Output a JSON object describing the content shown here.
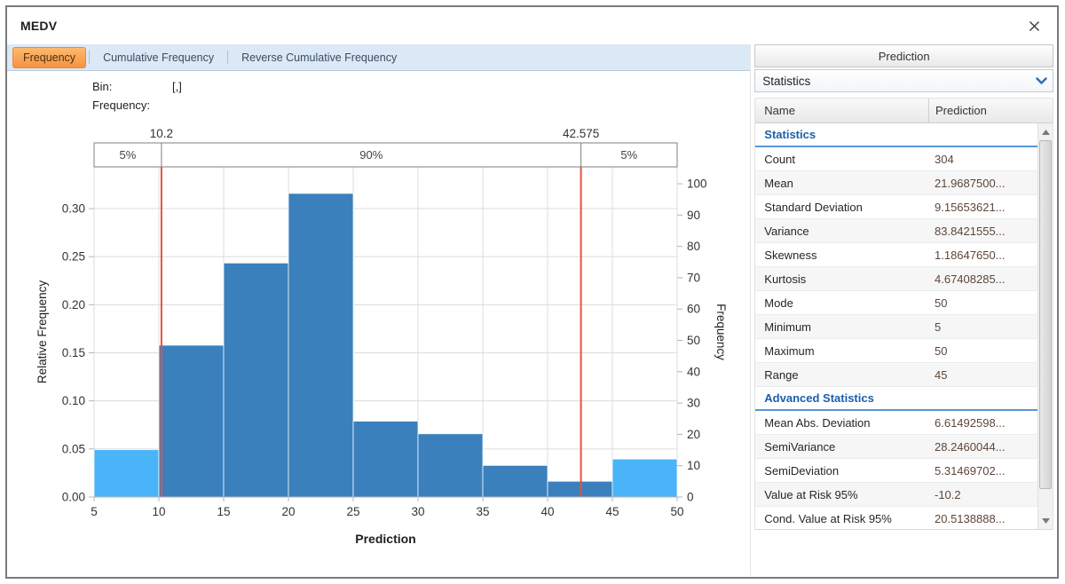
{
  "window": {
    "title": "MEDV",
    "close": "close"
  },
  "tabs": [
    {
      "label": "Frequency",
      "active": true
    },
    {
      "label": "Cumulative Frequency",
      "active": false
    },
    {
      "label": "Reverse Cumulative Frequency",
      "active": false
    }
  ],
  "readout": {
    "bin_label": "Bin:",
    "bin_value": "[,]",
    "frequency_label": "Frequency:",
    "frequency_value": ""
  },
  "chart_data": {
    "type": "bar",
    "title": "",
    "xlabel": "Prediction",
    "ylabel_left": "Relative Frequency",
    "ylabel_right": "Frequency",
    "x_range": [
      5,
      50
    ],
    "x_ticks": [
      5,
      10,
      15,
      20,
      25,
      30,
      35,
      40,
      45,
      50
    ],
    "y_left_ticks": [
      0,
      0.05,
      0.1,
      0.15,
      0.2,
      0.25,
      0.3
    ],
    "y_left_max": 0.3434,
    "y_right_ticks": [
      0,
      10,
      20,
      30,
      40,
      50,
      60,
      70,
      80,
      90,
      100
    ],
    "y_right_max": 105.4,
    "total_count": 304,
    "grid": true,
    "legend": null,
    "bins": [
      {
        "x0": 5,
        "x1": 10,
        "frequency": 15,
        "relative_frequency": 0.0493,
        "tail": true
      },
      {
        "x0": 10,
        "x1": 15,
        "frequency": 48,
        "relative_frequency": 0.1579,
        "tail": false
      },
      {
        "x0": 15,
        "x1": 20,
        "frequency": 74,
        "relative_frequency": 0.2434,
        "tail": false
      },
      {
        "x0": 20,
        "x1": 25,
        "frequency": 96,
        "relative_frequency": 0.3158,
        "tail": false
      },
      {
        "x0": 25,
        "x1": 30,
        "frequency": 24,
        "relative_frequency": 0.0789,
        "tail": false
      },
      {
        "x0": 30,
        "x1": 35,
        "frequency": 20,
        "relative_frequency": 0.0658,
        "tail": false
      },
      {
        "x0": 35,
        "x1": 40,
        "frequency": 10,
        "relative_frequency": 0.0329,
        "tail": false
      },
      {
        "x0": 40,
        "x1": 45,
        "frequency": 5,
        "relative_frequency": 0.0164,
        "tail": false
      },
      {
        "x0": 45,
        "x1": 50,
        "frequency": 12,
        "relative_frequency": 0.0395,
        "tail": true
      }
    ],
    "percentile_band": {
      "segments": [
        {
          "label": "5%",
          "from": 5,
          "to": 10.2
        },
        {
          "label": "90%",
          "from": 10.2,
          "to": 42.575
        },
        {
          "label": "5%",
          "from": 42.575,
          "to": 50
        }
      ],
      "markers": [
        {
          "value": 10.2,
          "label": "10.2"
        },
        {
          "value": 42.575,
          "label": "42.575"
        }
      ]
    },
    "colors": {
      "bar": "#3a80bd",
      "bar_tail": "#4ab4f8",
      "marker_line": "#e8503f",
      "grid": "#dcdcdc",
      "axis": "#b5b5b5",
      "band_border": "#7f7f7f",
      "tick_text": "#333333"
    }
  },
  "right_panel": {
    "header": "Prediction",
    "dropdown": {
      "value": "Statistics"
    },
    "table": {
      "columns": [
        "Name",
        "Prediction"
      ],
      "sections": [
        {
          "title": "Statistics",
          "rows": [
            [
              "Count",
              "304"
            ],
            [
              "Mean",
              "21.9687500..."
            ],
            [
              "Standard Deviation",
              "9.15653621..."
            ],
            [
              "Variance",
              "83.8421555..."
            ],
            [
              "Skewness",
              "1.18647650..."
            ],
            [
              "Kurtosis",
              "4.67408285..."
            ],
            [
              "Mode",
              "50"
            ],
            [
              "Minimum",
              "5"
            ],
            [
              "Maximum",
              "50"
            ],
            [
              "Range",
              "45"
            ]
          ]
        },
        {
          "title": "Advanced Statistics",
          "rows": [
            [
              "Mean Abs. Deviation",
              "6.61492598..."
            ],
            [
              "SemiVariance",
              "28.2460044..."
            ],
            [
              "SemiDeviation",
              "5.31469702..."
            ],
            [
              "Value at Risk 95%",
              "-10.2"
            ],
            [
              "Cond. Value at Risk 95%",
              "20.5138888..."
            ]
          ]
        }
      ]
    }
  }
}
